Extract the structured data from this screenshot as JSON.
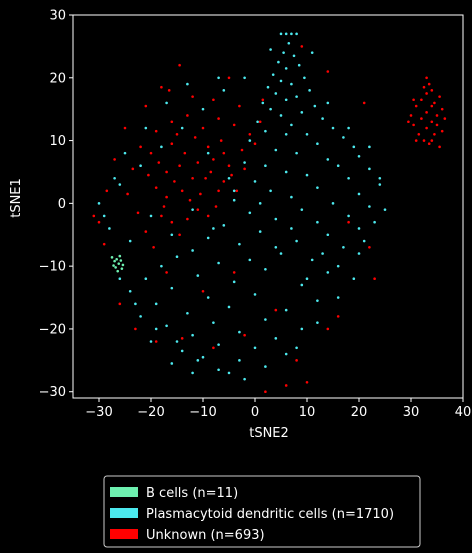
{
  "chart_data": {
    "type": "scatter",
    "xlabel": "tSNE2",
    "ylabel": "tSNE1",
    "xlim": [
      -35,
      40
    ],
    "ylim": [
      -31,
      30
    ],
    "x_ticks": [
      -30,
      -20,
      -10,
      0,
      10,
      20,
      30,
      40
    ],
    "y_ticks": [
      -30,
      -20,
      -10,
      0,
      10,
      20,
      30
    ],
    "x_tick_labels": [
      "−30",
      "−20",
      "−10",
      "0",
      "10",
      "20",
      "30",
      "40"
    ],
    "y_tick_labels": [
      "−30",
      "−20",
      "−10",
      "0",
      "10",
      "20",
      "30"
    ],
    "grid": false,
    "legend_position": "below",
    "background": "#000000",
    "series": [
      {
        "name": "B cells (n=11)",
        "color": "#6ef0b0",
        "points": [
          [
            -27.5,
            -8.6
          ],
          [
            -27.0,
            -9.2
          ],
          [
            -26.6,
            -8.9
          ],
          [
            -26.2,
            -9.6
          ],
          [
            -25.8,
            -9.1
          ],
          [
            -26.8,
            -10.2
          ],
          [
            -25.4,
            -9.8
          ],
          [
            -27.2,
            -9.9
          ],
          [
            -26.0,
            -8.4
          ],
          [
            -25.6,
            -10.4
          ],
          [
            -26.4,
            -10.8
          ]
        ]
      },
      {
        "name": "Plasmacytoid dendritic cells (n=1710)",
        "color": "#4ce9ee",
        "points": [
          [
            5.0,
            27.0
          ],
          [
            6.0,
            27.0
          ],
          [
            7.0,
            27.0
          ],
          [
            8.0,
            27.0
          ],
          [
            6.5,
            25.5
          ],
          [
            5.5,
            24.0
          ],
          [
            7.5,
            23.5
          ],
          [
            4.5,
            22.5
          ],
          [
            8.5,
            22.0
          ],
          [
            6.0,
            21.5
          ],
          [
            3.5,
            20.5
          ],
          [
            9.5,
            20.0
          ],
          [
            5.0,
            19.5
          ],
          [
            7.0,
            19.0
          ],
          [
            2.5,
            18.5
          ],
          [
            10.5,
            18.0
          ],
          [
            4.0,
            17.5
          ],
          [
            8.0,
            17.0
          ],
          [
            6.0,
            16.5
          ],
          [
            1.5,
            16.0
          ],
          [
            11.5,
            15.5
          ],
          [
            3.0,
            15.0
          ],
          [
            9.0,
            14.5
          ],
          [
            5.0,
            14.0
          ],
          [
            13.0,
            13.5
          ],
          [
            0.5,
            13.0
          ],
          [
            7.0,
            12.5
          ],
          [
            15.0,
            12.0
          ],
          [
            2.0,
            11.5
          ],
          [
            10.0,
            11.0
          ],
          [
            17.0,
            10.5
          ],
          [
            -1.0,
            10.0
          ],
          [
            12.0,
            9.5
          ],
          [
            19.0,
            9.0
          ],
          [
            4.0,
            8.5
          ],
          [
            8.0,
            8.0
          ],
          [
            20.0,
            7.5
          ],
          [
            14.0,
            7.0
          ],
          [
            -2.0,
            6.5
          ],
          [
            16.0,
            6.0
          ],
          [
            22.0,
            5.5
          ],
          [
            6.0,
            5.0
          ],
          [
            10.0,
            4.5
          ],
          [
            18.0,
            4.0
          ],
          [
            0.0,
            3.5
          ],
          [
            24.0,
            3.0
          ],
          [
            12.0,
            2.5
          ],
          [
            3.0,
            2.0
          ],
          [
            20.0,
            1.5
          ],
          [
            7.0,
            1.0
          ],
          [
            -4.0,
            0.5
          ],
          [
            15.0,
            0.0
          ],
          [
            22.0,
            -0.5
          ],
          [
            9.0,
            -1.0
          ],
          [
            -1.0,
            -1.5
          ],
          [
            18.0,
            -2.0
          ],
          [
            4.0,
            -2.5
          ],
          [
            12.0,
            -3.0
          ],
          [
            -6.0,
            -3.5
          ],
          [
            20.0,
            -4.0
          ],
          [
            1.0,
            -4.5
          ],
          [
            14.0,
            -5.0
          ],
          [
            -9.0,
            -5.5
          ],
          [
            8.0,
            -6.0
          ],
          [
            -3.0,
            -6.5
          ],
          [
            17.0,
            -7.0
          ],
          [
            -12.0,
            -7.5
          ],
          [
            5.0,
            -8.0
          ],
          [
            -15.0,
            -8.5
          ],
          [
            11.0,
            -9.0
          ],
          [
            -7.0,
            -9.5
          ],
          [
            -18.0,
            -10.0
          ],
          [
            2.0,
            -10.5
          ],
          [
            14.0,
            -11.0
          ],
          [
            -11.0,
            -11.5
          ],
          [
            -21.0,
            -12.0
          ],
          [
            -4.0,
            -12.5
          ],
          [
            9.0,
            -13.0
          ],
          [
            -16.0,
            -13.5
          ],
          [
            -24.0,
            -14.0
          ],
          [
            0.0,
            -14.5
          ],
          [
            -9.0,
            -15.0
          ],
          [
            12.0,
            -15.5
          ],
          [
            -19.0,
            -16.0
          ],
          [
            -5.0,
            -16.5
          ],
          [
            6.0,
            -17.0
          ],
          [
            -13.0,
            -17.5
          ],
          [
            -22.0,
            -18.0
          ],
          [
            2.0,
            -18.5
          ],
          [
            -8.0,
            -19.0
          ],
          [
            -17.0,
            -19.5
          ],
          [
            9.0,
            -20.0
          ],
          [
            -3.0,
            -20.5
          ],
          [
            -12.0,
            -21.0
          ],
          [
            4.0,
            -21.5
          ],
          [
            -20.0,
            -22.0
          ],
          [
            -7.0,
            -22.5
          ],
          [
            0.0,
            -23.0
          ],
          [
            -14.0,
            -23.5
          ],
          [
            6.0,
            -24.0
          ],
          [
            -10.0,
            -24.5
          ],
          [
            -3.0,
            -25.0
          ],
          [
            -16.0,
            -25.5
          ],
          [
            2.0,
            -26.0
          ],
          [
            -7.0,
            -26.5
          ],
          [
            -12.0,
            -27.0
          ],
          [
            -2.0,
            -28.0
          ],
          [
            -30.0,
            0.0
          ],
          [
            -28.0,
            -4.0
          ],
          [
            -26.0,
            3.0
          ],
          [
            -24.0,
            -6.0
          ],
          [
            -22.0,
            6.0
          ],
          [
            -20.0,
            -2.0
          ],
          [
            -18.0,
            9.0
          ],
          [
            -16.0,
            -5.0
          ],
          [
            -14.0,
            12.0
          ],
          [
            -12.0,
            -1.0
          ],
          [
            -10.0,
            15.0
          ],
          [
            -8.0,
            -4.0
          ],
          [
            -6.0,
            18.0
          ],
          [
            -4.0,
            2.0
          ],
          [
            -2.0,
            20.0
          ],
          [
            2.0,
            6.0
          ],
          [
            4.0,
            -7.0
          ],
          [
            6.0,
            11.0
          ],
          [
            10.0,
            -12.0
          ],
          [
            14.0,
            16.0
          ],
          [
            16.0,
            -10.0
          ],
          [
            18.0,
            12.0
          ],
          [
            20.0,
            -8.0
          ],
          [
            22.0,
            9.0
          ],
          [
            23.0,
            -3.0
          ],
          [
            24.0,
            4.0
          ],
          [
            25.0,
            -1.0
          ],
          [
            11.0,
            24.0
          ],
          [
            3.0,
            24.5
          ],
          [
            -7.0,
            20.0
          ],
          [
            -13.0,
            19.0
          ],
          [
            -17.0,
            16.0
          ],
          [
            -21.0,
            12.0
          ],
          [
            -25.0,
            8.0
          ],
          [
            -27.0,
            4.0
          ],
          [
            -29.0,
            -2.0
          ],
          [
            -26.0,
            -12.0
          ],
          [
            -23.0,
            -16.0
          ],
          [
            -19.0,
            -20.0
          ],
          [
            -15.0,
            -22.0
          ],
          [
            -11.0,
            -25.0
          ],
          [
            -5.0,
            -27.0
          ],
          [
            8.0,
            -23.0
          ],
          [
            12.0,
            -19.0
          ],
          [
            16.0,
            -15.0
          ],
          [
            19.0,
            -12.0
          ],
          [
            21.0,
            -6.0
          ],
          [
            13.0,
            -8.0
          ],
          [
            7.0,
            -4.0
          ],
          [
            1.0,
            0.0
          ],
          [
            -5.0,
            4.0
          ],
          [
            -9.0,
            8.0
          ],
          [
            -1.0,
            -9.0
          ]
        ]
      },
      {
        "name": "Unknown (n=693)",
        "color": "#ff0000",
        "points": [
          [
            -20.0,
            8.0
          ],
          [
            -18.5,
            6.5
          ],
          [
            -17.0,
            5.0
          ],
          [
            -15.5,
            3.5
          ],
          [
            -14.0,
            2.0
          ],
          [
            -12.5,
            0.5
          ],
          [
            -11.0,
            -1.0
          ],
          [
            -9.5,
            4.0
          ],
          [
            -8.0,
            7.0
          ],
          [
            -6.5,
            10.0
          ],
          [
            -16.0,
            9.5
          ],
          [
            -13.5,
            8.0
          ],
          [
            -11.0,
            6.5
          ],
          [
            -8.5,
            5.0
          ],
          [
            -6.0,
            3.5
          ],
          [
            -3.5,
            2.0
          ],
          [
            -19.0,
            2.5
          ],
          [
            -17.5,
            -0.5
          ],
          [
            -16.0,
            -3.0
          ],
          [
            -14.5,
            -5.0
          ],
          [
            -13.0,
            -2.5
          ],
          [
            -10.5,
            1.5
          ],
          [
            -9.0,
            -2.0
          ],
          [
            -7.5,
            -0.5
          ],
          [
            -5.0,
            6.0
          ],
          [
            -2.5,
            8.5
          ],
          [
            -1.0,
            11.0
          ],
          [
            -4.0,
            12.5
          ],
          [
            -7.0,
            13.5
          ],
          [
            -10.0,
            12.0
          ],
          [
            -13.0,
            14.0
          ],
          [
            -16.0,
            13.0
          ],
          [
            -19.0,
            11.5
          ],
          [
            -22.0,
            9.0
          ],
          [
            -23.5,
            5.5
          ],
          [
            -24.5,
            1.5
          ],
          [
            -22.5,
            -1.5
          ],
          [
            -21.0,
            -4.5
          ],
          [
            -19.5,
            -7.0
          ],
          [
            -12.0,
            4.0
          ],
          [
            -14.5,
            6.0
          ],
          [
            -17.0,
            1.0
          ],
          [
            -9.0,
            9.0
          ],
          [
            -6.0,
            8.0
          ],
          [
            -11.5,
            10.5
          ],
          [
            -15.0,
            11.0
          ],
          [
            -20.5,
            4.5
          ],
          [
            -18.0,
            -2.0
          ],
          [
            -7.0,
            2.0
          ],
          [
            -4.5,
            4.5
          ],
          [
            -2.0,
            5.5
          ],
          [
            0.0,
            9.5
          ],
          [
            1.0,
            13.0
          ],
          [
            -3.0,
            15.5
          ],
          [
            -8.0,
            16.5
          ],
          [
            -12.0,
            17.0
          ],
          [
            -16.5,
            18.0
          ],
          [
            -21.0,
            15.5
          ],
          [
            -25.0,
            12.0
          ],
          [
            -27.0,
            7.0
          ],
          [
            -28.5,
            2.0
          ],
          [
            -30.0,
            -3.0
          ],
          [
            -29.0,
            -6.5
          ],
          [
            -31.0,
            -2.0
          ],
          [
            -26.0,
            -16.0
          ],
          [
            -23.0,
            -20.0
          ],
          [
            -19.0,
            -22.0
          ],
          [
            -14.0,
            -21.5
          ],
          [
            -8.0,
            -23.0
          ],
          [
            -2.0,
            -21.0
          ],
          [
            4.0,
            -17.0
          ],
          [
            8.0,
            -25.0
          ],
          [
            2.0,
            -30.0
          ],
          [
            6.0,
            -29.0
          ],
          [
            10.0,
            -28.5
          ],
          [
            14.0,
            -20.0
          ],
          [
            16.0,
            -18.0
          ],
          [
            23.0,
            -12.0
          ],
          [
            21.0,
            16.0
          ],
          [
            14.0,
            21.0
          ],
          [
            9.0,
            25.0
          ],
          [
            1.5,
            16.5
          ],
          [
            -5.0,
            20.0
          ],
          [
            -14.5,
            22.0
          ],
          [
            -18.0,
            18.5
          ],
          [
            22.0,
            -7.0
          ],
          [
            18.0,
            -3.0
          ],
          [
            -10.0,
            -14.0
          ],
          [
            -4.0,
            -11.0
          ],
          [
            -17.0,
            -11.0
          ],
          [
            30.0,
            14.0
          ],
          [
            30.5,
            12.5
          ],
          [
            31.0,
            15.5
          ],
          [
            31.5,
            11.0
          ],
          [
            32.0,
            13.5
          ],
          [
            32.0,
            16.5
          ],
          [
            32.5,
            10.0
          ],
          [
            33.0,
            12.0
          ],
          [
            33.0,
            14.5
          ],
          [
            33.0,
            17.5
          ],
          [
            33.5,
            19.0
          ],
          [
            33.5,
            9.5
          ],
          [
            34.0,
            13.0
          ],
          [
            34.0,
            15.5
          ],
          [
            34.0,
            18.0
          ],
          [
            34.5,
            11.0
          ],
          [
            34.5,
            16.0
          ],
          [
            35.0,
            12.5
          ],
          [
            35.0,
            14.0
          ],
          [
            35.5,
            9.0
          ],
          [
            35.5,
            17.0
          ],
          [
            36.0,
            11.5
          ],
          [
            36.0,
            15.0
          ],
          [
            32.5,
            18.5
          ],
          [
            31.0,
            10.0
          ],
          [
            29.5,
            13.0
          ],
          [
            33.0,
            20.0
          ],
          [
            34.0,
            10.0
          ],
          [
            36.5,
            13.5
          ],
          [
            30.5,
            16.5
          ]
        ]
      }
    ]
  }
}
